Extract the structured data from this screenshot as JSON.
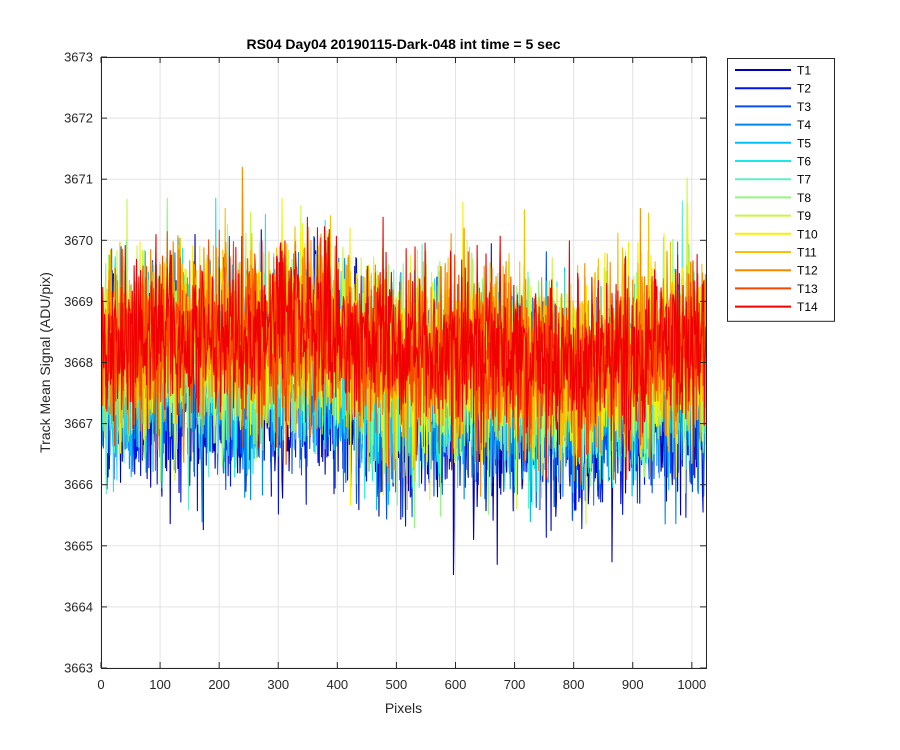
{
  "chart_data": {
    "type": "line",
    "title": "RS04 Day04 20190115-Dark-048 int time = 5 sec",
    "xlabel": "Pixels",
    "ylabel": "Track Mean Signal (ADU/pix)",
    "xlim": [
      0,
      1024
    ],
    "ylim": [
      3663,
      3673
    ],
    "xticks": [
      0,
      100,
      200,
      300,
      400,
      500,
      600,
      700,
      800,
      900,
      1000
    ],
    "yticks": [
      3663,
      3664,
      3665,
      3666,
      3667,
      3668,
      3669,
      3670,
      3671,
      3672,
      3673
    ],
    "grid": true,
    "legend_position": "outside-top-right",
    "n_points_per_series": 1024,
    "series": [
      {
        "name": "T1",
        "color": "#0000b3",
        "mean": 3667.3,
        "spread": 1.15
      },
      {
        "name": "T2",
        "color": "#0015e6",
        "mean": 3667.4,
        "spread": 1.1
      },
      {
        "name": "T3",
        "color": "#0050f5",
        "mean": 3667.5,
        "spread": 1.1
      },
      {
        "name": "T4",
        "color": "#0088f0",
        "mean": 3667.6,
        "spread": 1.05
      },
      {
        "name": "T5",
        "color": "#00c0f5",
        "mean": 3667.7,
        "spread": 1.05
      },
      {
        "name": "T6",
        "color": "#1ae8e8",
        "mean": 3667.8,
        "spread": 1.05
      },
      {
        "name": "T7",
        "color": "#60f0c8",
        "mean": 3667.9,
        "spread": 1.05
      },
      {
        "name": "T8",
        "color": "#90f87a",
        "mean": 3668.0,
        "spread": 1.05
      },
      {
        "name": "T9",
        "color": "#c8f840",
        "mean": 3668.1,
        "spread": 1.05
      },
      {
        "name": "T10",
        "color": "#f8f000",
        "mean": 3668.2,
        "spread": 1.05
      },
      {
        "name": "T11",
        "color": "#f8c000",
        "mean": 3668.2,
        "spread": 1.05
      },
      {
        "name": "T12",
        "color": "#f88a00",
        "mean": 3668.2,
        "spread": 1.05
      },
      {
        "name": "T13",
        "color": "#f84800",
        "mean": 3668.2,
        "spread": 1.0
      },
      {
        "name": "T14",
        "color": "#f00000",
        "mean": 3668.3,
        "spread": 0.95
      }
    ]
  }
}
